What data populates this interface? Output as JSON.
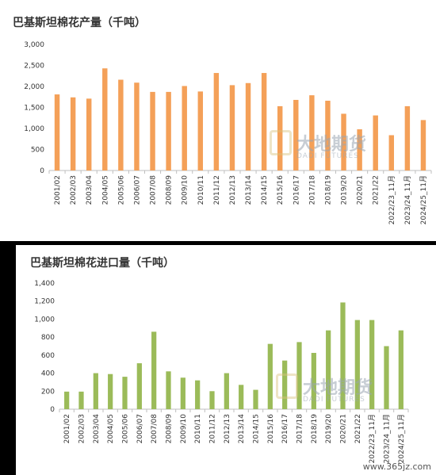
{
  "chart_data": [
    {
      "type": "bar",
      "title": "巴基斯坦棉花产量（千吨）",
      "categories": [
        "2001/02",
        "2002/03",
        "2003/04",
        "2004/05",
        "2005/06",
        "2006/07",
        "2007/08",
        "2008/09",
        "2009/10",
        "2010/11",
        "2011/12",
        "2012/13",
        "2013/14",
        "2014/15",
        "2015/16",
        "2016/17",
        "2017/18",
        "2018/19",
        "2019/20",
        "2020/21",
        "2021/22",
        "2022/23_11月",
        "2023/24_11月",
        "2024/25_11月"
      ],
      "values": [
        1810,
        1740,
        1710,
        2430,
        2160,
        2090,
        1870,
        1870,
        2010,
        1880,
        2320,
        2030,
        2080,
        2320,
        1530,
        1680,
        1790,
        1660,
        1350,
        980,
        1310,
        840,
        1530,
        1200
      ],
      "ylim": [
        0,
        3000
      ],
      "yticks": [
        0,
        500,
        1000,
        1500,
        2000,
        2500,
        3000
      ],
      "ytick_labels": [
        "0",
        "500",
        "1,000",
        "1,500",
        "2,000",
        "2,500",
        "3,000"
      ],
      "color": "#f4a058"
    },
    {
      "type": "bar",
      "title": "巴基斯坦棉花进口量（千吨）",
      "categories": [
        "2001/02",
        "2002/03",
        "2003/04",
        "2004/05",
        "2005/06",
        "2006/07",
        "2007/08",
        "2008/09",
        "2009/10",
        "2010/11",
        "2011/12",
        "2012/13",
        "2013/14",
        "2014/15",
        "2015/16",
        "2016/17",
        "2017/18",
        "2018/19",
        "2019/20",
        "2020/21",
        "2021/22",
        "2022/23_11月",
        "2023/24_11月",
        "2024/25_11月"
      ],
      "values": [
        195,
        195,
        400,
        390,
        360,
        510,
        860,
        420,
        350,
        320,
        200,
        400,
        270,
        215,
        725,
        540,
        745,
        625,
        875,
        1185,
        990,
        990,
        700,
        875
      ],
      "ylim": [
        0,
        1400
      ],
      "yticks": [
        0,
        200,
        400,
        600,
        800,
        1000,
        1200,
        1400
      ],
      "ytick_labels": [
        "0",
        "200",
        "400",
        "600",
        "800",
        "1,000",
        "1,200",
        "1,400"
      ],
      "color": "#9bbb59"
    }
  ],
  "watermark": {
    "cn": "大地期货",
    "en": "DADI FUTURES"
  },
  "site_mark": "www.365jz.com"
}
